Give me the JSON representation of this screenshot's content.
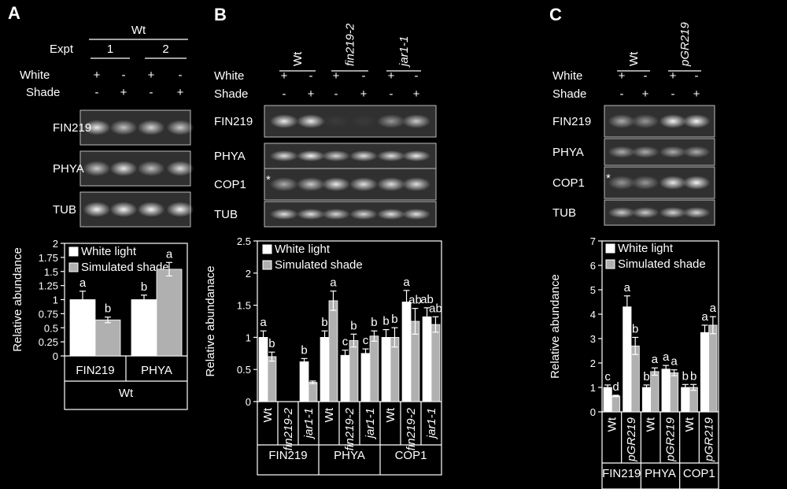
{
  "panels": [
    {
      "id": "A",
      "letter": "A",
      "blot": {
        "group_label": "Wt",
        "expt_label": "Expt",
        "expts": [
          "1",
          "2"
        ],
        "white_label": "White",
        "shade_label": "Shade",
        "white_signs": [
          "+",
          "-",
          "+",
          "-"
        ],
        "shade_signs": [
          "-",
          "+",
          "-",
          "+"
        ],
        "genotypes": [],
        "rows": [
          {
            "label": "FIN219",
            "bands": [
              0.9,
              0.7,
              0.8,
              0.75
            ],
            "star": false
          },
          {
            "label": "PHYA",
            "bands": [
              0.75,
              0.9,
              0.7,
              0.85
            ],
            "star": false
          },
          {
            "label": "TUB",
            "bands": [
              0.95,
              0.95,
              0.95,
              0.95
            ],
            "star": false
          }
        ]
      },
      "chart_data": {
        "type": "bar",
        "ylabel": "Relative abundance",
        "ylim": [
          0,
          2
        ],
        "ytick_step": 0.25,
        "ytick_labels": [
          "0",
          "0.25",
          "0.5",
          "0.75",
          "1",
          "1.25",
          "1.5",
          "1.75",
          "2"
        ],
        "legend": [
          "White light",
          "Simulated shade"
        ],
        "categories": [
          "FIN219",
          "PHYA"
        ],
        "series": [
          {
            "name": "White light",
            "color": "#ffffff",
            "values": [
              1.0,
              1.0
            ],
            "errors": [
              0.15,
              0.08
            ],
            "letters": [
              "a",
              "b"
            ]
          },
          {
            "name": "Simulated shade",
            "color": "#b0b0b0",
            "values": [
              0.64,
              1.54
            ],
            "errors": [
              0.05,
              0.12
            ],
            "letters": [
              "b",
              "a"
            ]
          }
        ],
        "group_labels": [
          "Wt"
        ]
      }
    },
    {
      "id": "B",
      "letter": "B",
      "blot": {
        "white_label": "White",
        "shade_label": "Shade",
        "white_signs": [
          "+",
          "-",
          "+",
          "-",
          "+",
          "-"
        ],
        "shade_signs": [
          "-",
          "+",
          "-",
          "+",
          "-",
          "+"
        ],
        "genotypes": [
          "Wt",
          "fin219-2",
          "jar1-1"
        ],
        "genotype_italic": [
          false,
          true,
          true
        ],
        "rows": [
          {
            "label": "FIN219",
            "bands": [
              0.9,
              0.9,
              0.05,
              0.05,
              0.5,
              0.75
            ],
            "star": false
          },
          {
            "label": "PHYA",
            "bands": [
              0.85,
              0.95,
              0.8,
              0.85,
              0.85,
              0.9
            ],
            "star": false
          },
          {
            "label": "COP1",
            "bands": [
              0.6,
              0.75,
              0.9,
              0.85,
              0.85,
              0.85
            ],
            "star": true
          },
          {
            "label": "TUB",
            "bands": [
              0.85,
              0.85,
              0.8,
              0.8,
              0.85,
              0.85
            ],
            "star": false
          }
        ]
      },
      "chart_data": {
        "type": "bar",
        "ylabel": "Relative abundanace",
        "ylim": [
          0,
          2.5
        ],
        "ytick_step": 0.5,
        "ytick_labels": [
          "0",
          "0.5",
          "1",
          "1.5",
          "2",
          "2.5"
        ],
        "legend": [
          "White light",
          "Simulated shade"
        ],
        "categories": [
          "Wt",
          "fin219-2",
          "jar1-1",
          "Wt",
          "fin219-2",
          "jar1-1",
          "Wt",
          "fin219-2",
          "jar1-1"
        ],
        "category_italic": [
          false,
          true,
          true,
          false,
          true,
          true,
          false,
          true,
          true
        ],
        "series": [
          {
            "name": "White light",
            "color": "#ffffff",
            "values": [
              1.0,
              0,
              0.62,
              1.0,
              0.72,
              0.75,
              1.0,
              1.55,
              1.32
            ],
            "errors": [
              0.1,
              0,
              0.05,
              0.1,
              0.08,
              0.07,
              0.12,
              0.18,
              0.14
            ],
            "letters": [
              "a",
              "",
              "b",
              "b",
              "c",
              "c",
              "b",
              "a",
              "ab"
            ]
          },
          {
            "name": "Simulated shade",
            "color": "#b0b0b0",
            "values": [
              0.7,
              0,
              0.3,
              1.57,
              0.95,
              1.02,
              1.0,
              1.25,
              1.2
            ],
            "errors": [
              0.07,
              0,
              0.02,
              0.15,
              0.1,
              0.08,
              0.15,
              0.2,
              0.12
            ],
            "letters": [
              "b",
              "",
              "",
              "a",
              "b",
              "b",
              "b",
              "ab",
              "ab"
            ]
          }
        ],
        "group_labels": [
          "FIN219",
          "PHYA",
          "COP1"
        ]
      }
    },
    {
      "id": "C",
      "letter": "C",
      "blot": {
        "white_label": "White",
        "shade_label": "Shade",
        "white_signs": [
          "+",
          "-",
          "+",
          "-"
        ],
        "shade_signs": [
          "-",
          "+",
          "-",
          "+"
        ],
        "genotypes": [
          "Wt",
          "pGR219"
        ],
        "genotype_italic": [
          false,
          true
        ],
        "rows": [
          {
            "label": "FIN219",
            "bands": [
              0.6,
              0.5,
              0.95,
              0.95
            ],
            "star": false
          },
          {
            "label": "PHYA",
            "bands": [
              0.6,
              0.6,
              0.6,
              0.6
            ],
            "star": false
          },
          {
            "label": "COP1",
            "bands": [
              0.5,
              0.5,
              0.9,
              0.95
            ],
            "star": true
          },
          {
            "label": "TUB",
            "bands": [
              0.75,
              0.75,
              0.8,
              0.8
            ],
            "star": false
          }
        ]
      },
      "chart_data": {
        "type": "bar",
        "ylabel": "Relative abundance",
        "ylim": [
          0,
          7
        ],
        "ytick_step": 1,
        "ytick_labels": [
          "0",
          "1",
          "2",
          "3",
          "4",
          "5",
          "6",
          "7"
        ],
        "legend": [
          "White light",
          "Simulated shade"
        ],
        "categories": [
          "Wt",
          "pGR219",
          "Wt",
          "pGR219",
          "Wt",
          "pGR219"
        ],
        "category_italic": [
          false,
          true,
          false,
          true,
          false,
          true
        ],
        "series": [
          {
            "name": "White light",
            "color": "#ffffff",
            "values": [
              1.0,
              4.3,
              1.0,
              1.75,
              1.0,
              3.25
            ],
            "errors": [
              0.1,
              0.45,
              0.1,
              0.15,
              0.12,
              0.3
            ],
            "letters": [
              "c",
              "a",
              "b",
              "a",
              "b",
              "a"
            ]
          },
          {
            "name": "Simulated shade",
            "color": "#b0b0b0",
            "values": [
              0.65,
              2.7,
              1.65,
              1.6,
              1.0,
              3.55
            ],
            "errors": [
              0.03,
              0.35,
              0.15,
              0.12,
              0.12,
              0.35
            ],
            "letters": [
              "d",
              "b",
              "a",
              "a",
              "b",
              "a"
            ]
          }
        ],
        "group_labels": [
          "FIN219",
          "PHYA",
          "COP1"
        ]
      }
    }
  ]
}
